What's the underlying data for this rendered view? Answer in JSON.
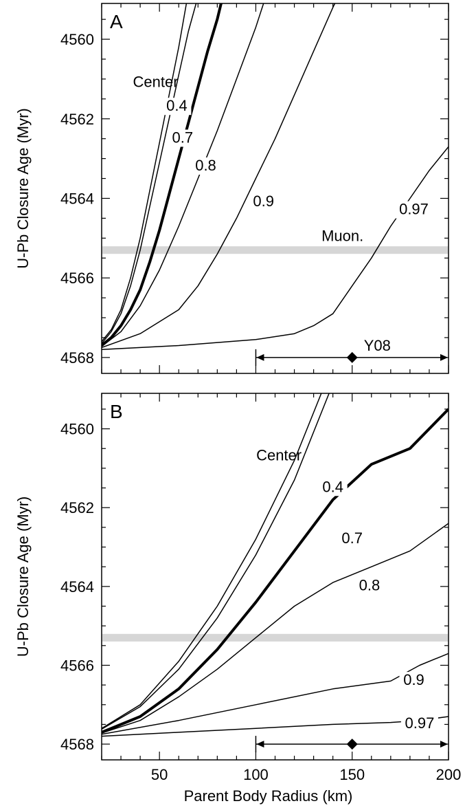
{
  "chart_data": [
    {
      "type": "line",
      "panel_label": "A",
      "xlabel": "",
      "ylabel": "U-Pb Closure Age (Myr)",
      "xlim": [
        20,
        200
      ],
      "ylim": [
        4568.4,
        4559.1
      ],
      "y_axis_inverted": true,
      "x_ticks": [
        50,
        100,
        150,
        200
      ],
      "x_tick_labels": [
        "",
        "",
        "",
        ""
      ],
      "y_ticks": [
        4560,
        4562,
        4564,
        4566,
        4568
      ],
      "y_tick_labels": [
        "4560",
        "4562",
        "4564",
        "4566",
        "4568"
      ],
      "grid": false,
      "band": {
        "y": 4565.3,
        "color": "#d6d6d6",
        "label": "Muon."
      },
      "range_marker": {
        "x_min": 100,
        "x_max": 200,
        "x_point": 150,
        "y": 4568,
        "label": "Y08"
      },
      "series": [
        {
          "name": "Center",
          "emphasis": false,
          "points": [
            [
              20,
              4567.6
            ],
            [
              25,
              4567.3
            ],
            [
              30,
              4566.8
            ],
            [
              35,
              4566.0
            ],
            [
              40,
              4565.0
            ],
            [
              45,
              4563.8
            ],
            [
              50,
              4562.6
            ],
            [
              55,
              4561.4
            ],
            [
              60,
              4560.2
            ],
            [
              64,
              4559.1
            ]
          ]
        },
        {
          "name": "0.4",
          "emphasis": false,
          "points": [
            [
              20,
              4567.65
            ],
            [
              25,
              4567.35
            ],
            [
              30,
              4566.9
            ],
            [
              35,
              4566.2
            ],
            [
              40,
              4565.3
            ],
            [
              45,
              4564.2
            ],
            [
              50,
              4563.1
            ],
            [
              55,
              4562.0
            ],
            [
              60,
              4560.9
            ],
            [
              65,
              4559.8
            ],
            [
              69,
              4559.1
            ]
          ]
        },
        {
          "name": "0.7",
          "emphasis": true,
          "points": [
            [
              20,
              4567.7
            ],
            [
              25,
              4567.5
            ],
            [
              30,
              4567.2
            ],
            [
              35,
              4566.8
            ],
            [
              40,
              4566.3
            ],
            [
              45,
              4565.6
            ],
            [
              50,
              4564.8
            ],
            [
              55,
              4563.9
            ],
            [
              60,
              4563.0
            ],
            [
              65,
              4562.1
            ],
            [
              70,
              4561.2
            ],
            [
              75,
              4560.3
            ],
            [
              80,
              4559.5
            ],
            [
              82,
              4559.1
            ]
          ]
        },
        {
          "name": "0.8",
          "emphasis": false,
          "points": [
            [
              20,
              4567.72
            ],
            [
              30,
              4567.35
            ],
            [
              40,
              4566.7
            ],
            [
              50,
              4565.8
            ],
            [
              60,
              4564.7
            ],
            [
              70,
              4563.5
            ],
            [
              80,
              4562.3
            ],
            [
              90,
              4561.0
            ],
            [
              100,
              4559.7
            ],
            [
              104,
              4559.1
            ]
          ]
        },
        {
          "name": "0.9",
          "emphasis": false,
          "points": [
            [
              20,
              4567.75
            ],
            [
              40,
              4567.4
            ],
            [
              60,
              4566.8
            ],
            [
              70,
              4566.2
            ],
            [
              80,
              4565.4
            ],
            [
              90,
              4564.5
            ],
            [
              100,
              4563.5
            ],
            [
              110,
              4562.5
            ],
            [
              120,
              4561.4
            ],
            [
              130,
              4560.3
            ],
            [
              140,
              4559.2
            ],
            [
              141,
              4559.1
            ]
          ]
        },
        {
          "name": "0.97",
          "emphasis": false,
          "points": [
            [
              20,
              4567.8
            ],
            [
              60,
              4567.7
            ],
            [
              100,
              4567.55
            ],
            [
              120,
              4567.4
            ],
            [
              130,
              4567.2
            ],
            [
              140,
              4566.9
            ],
            [
              150,
              4566.2
            ],
            [
              160,
              4565.5
            ],
            [
              170,
              4564.7
            ],
            [
              180,
              4564.0
            ],
            [
              190,
              4563.3
            ],
            [
              200,
              4562.7
            ]
          ]
        }
      ]
    },
    {
      "type": "line",
      "panel_label": "B",
      "xlabel": "Parent Body Radius (km)",
      "ylabel": "U-Pb Closure Age (Myr)",
      "xlim": [
        20,
        200
      ],
      "ylim": [
        4568.4,
        4559.1
      ],
      "y_axis_inverted": true,
      "x_ticks": [
        50,
        100,
        150,
        200
      ],
      "x_tick_labels": [
        "50",
        "100",
        "150",
        "200"
      ],
      "y_ticks": [
        4560,
        4562,
        4564,
        4566,
        4568
      ],
      "y_tick_labels": [
        "4560",
        "4562",
        "4564",
        "4566",
        "4568"
      ],
      "grid": false,
      "band": {
        "y": 4565.3,
        "color": "#d6d6d6",
        "label": ""
      },
      "range_marker": {
        "x_min": 100,
        "x_max": 200,
        "x_point": 150,
        "y": 4568,
        "label": ""
      },
      "series": [
        {
          "name": "Center",
          "emphasis": false,
          "points": [
            [
              20,
              4567.6
            ],
            [
              40,
              4567.0
            ],
            [
              60,
              4565.9
            ],
            [
              80,
              4564.5
            ],
            [
              100,
              4562.8
            ],
            [
              120,
              4560.8
            ],
            [
              134,
              4559.1
            ]
          ]
        },
        {
          "name": "0.4",
          "emphasis": false,
          "points": [
            [
              20,
              4567.62
            ],
            [
              40,
              4567.05
            ],
            [
              60,
              4566.1
            ],
            [
              80,
              4564.8
            ],
            [
              100,
              4563.2
            ],
            [
              120,
              4561.3
            ],
            [
              138,
              4559.1
            ]
          ]
        },
        {
          "name": "0.7",
          "emphasis": true,
          "points": [
            [
              20,
              4567.7
            ],
            [
              40,
              4567.3
            ],
            [
              60,
              4566.6
            ],
            [
              80,
              4565.6
            ],
            [
              100,
              4564.4
            ],
            [
              120,
              4563.1
            ],
            [
              140,
              4561.8
            ],
            [
              160,
              4560.9
            ],
            [
              180,
              4560.5
            ],
            [
              200,
              4559.5
            ]
          ]
        },
        {
          "name": "0.8",
          "emphasis": false,
          "points": [
            [
              20,
              4567.72
            ],
            [
              40,
              4567.4
            ],
            [
              60,
              4566.8
            ],
            [
              80,
              4566.1
            ],
            [
              100,
              4565.3
            ],
            [
              120,
              4564.5
            ],
            [
              140,
              4563.9
            ],
            [
              160,
              4563.5
            ],
            [
              180,
              4563.1
            ],
            [
              200,
              4562.4
            ]
          ]
        },
        {
          "name": "0.9",
          "emphasis": false,
          "points": [
            [
              20,
              4567.75
            ],
            [
              60,
              4567.4
            ],
            [
              100,
              4567.0
            ],
            [
              140,
              4566.6
            ],
            [
              170,
              4566.4
            ],
            [
              185,
              4566.0
            ],
            [
              200,
              4565.7
            ]
          ]
        },
        {
          "name": "0.97",
          "emphasis": false,
          "points": [
            [
              20,
              4567.8
            ],
            [
              60,
              4567.7
            ],
            [
              100,
              4567.6
            ],
            [
              140,
              4567.5
            ],
            [
              170,
              4567.45
            ],
            [
              185,
              4567.4
            ],
            [
              200,
              4567.3
            ]
          ]
        }
      ]
    }
  ]
}
